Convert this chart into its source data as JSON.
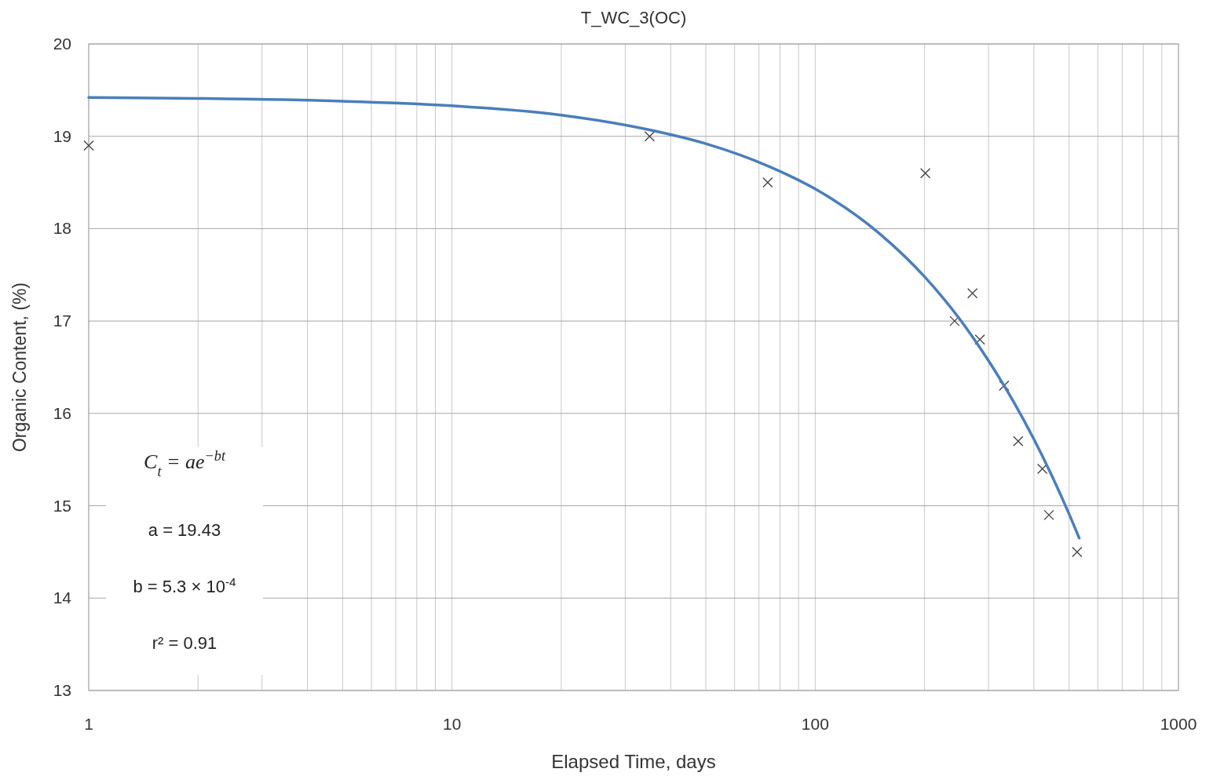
{
  "chart_data": {
    "type": "scatter",
    "title": "T_WC_3(OC)",
    "xlabel": "Elapsed Time, days",
    "ylabel": "Organic Content, (%)",
    "log": "x",
    "grid": true,
    "marker": "cross",
    "xlim": [
      1,
      1000
    ],
    "ylim": [
      13,
      20
    ],
    "xticks": [
      1,
      {
        "value": 2,
        "label": null
      },
      {
        "value": 3,
        "label": null
      },
      {
        "value": 4,
        "label": null
      },
      {
        "value": 5,
        "label": null
      },
      {
        "value": 6,
        "label": null
      },
      {
        "value": 7,
        "label": null
      },
      {
        "value": 8,
        "label": null
      },
      {
        "value": 9,
        "label": null
      },
      10,
      {
        "value": 20,
        "label": null
      },
      {
        "value": 30,
        "label": null
      },
      {
        "value": 40,
        "label": null
      },
      {
        "value": 50,
        "label": null
      },
      {
        "value": 60,
        "label": null
      },
      {
        "value": 70,
        "label": null
      },
      {
        "value": 80,
        "label": null
      },
      {
        "value": 90,
        "label": null
      },
      100,
      {
        "value": 200,
        "label": null
      },
      {
        "value": 300,
        "label": null
      },
      {
        "value": 400,
        "label": null
      },
      {
        "value": 500,
        "label": null
      },
      {
        "value": 600,
        "label": null
      },
      {
        "value": 700,
        "label": null
      },
      {
        "value": 800,
        "label": null
      },
      {
        "value": 900,
        "label": null
      },
      1000
    ],
    "yticks": [
      13,
      14,
      15,
      16,
      17,
      18,
      19,
      20
    ],
    "series": [
      {
        "color": "#404040",
        "x": [
          1,
          35,
          74,
          201,
          242,
          271,
          284,
          331,
          362,
          422,
          440,
          526
        ],
        "values": [
          18.9,
          19.0,
          18.5,
          18.6,
          17.0,
          17.3,
          16.8,
          16.3,
          15.7,
          15.4,
          14.9,
          14.5
        ]
      },
      {
        "type": "line",
        "color": "#4a7ebb",
        "marker": "none",
        "line_style": "solid",
        "x": [
          1,
          2,
          5,
          10,
          20,
          35,
          50,
          75,
          100,
          150,
          200,
          250,
          300,
          350,
          400,
          450,
          500,
          533
        ],
        "values": [
          19.42,
          19.41,
          19.38,
          19.33,
          19.23,
          19.07,
          18.92,
          18.67,
          18.43,
          17.95,
          17.48,
          17.02,
          16.57,
          16.14,
          15.72,
          15.31,
          14.91,
          14.65
        ]
      }
    ],
    "annotations": [
      "C$_{t}$ = ae$^{−bt}$",
      "a = 19.43",
      "b = 5.3 × 10$^{-4}$",
      "r² = 0.91"
    ]
  }
}
